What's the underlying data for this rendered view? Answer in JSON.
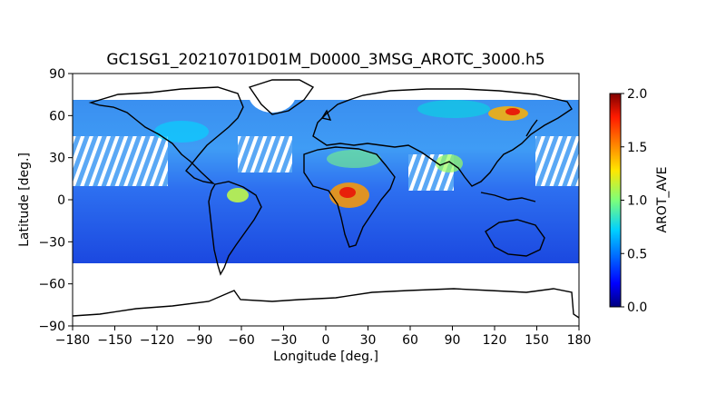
{
  "chart_data": {
    "type": "heatmap",
    "title": "GC1SG1_20210701D01M_D0000_3MSG_AROTC_3000.h5",
    "xlabel": "Longitude [deg.]",
    "ylabel": "Latitude [deg.]",
    "xlim": [
      -180,
      180
    ],
    "ylim": [
      -90,
      90
    ],
    "xticks": [
      "−180",
      "−150",
      "−120",
      "−90",
      "−60",
      "−30",
      "0",
      "30",
      "60",
      "90",
      "120",
      "150",
      "180"
    ],
    "yticks": [
      "90",
      "60",
      "30",
      "0",
      "−30",
      "−60",
      "−90"
    ],
    "colorbar": {
      "label": "AROT_AVE",
      "range": [
        0.0,
        2.0
      ],
      "ticks": [
        "0.0",
        "0.5",
        "1.0",
        "1.5",
        "2.0"
      ],
      "colormap": "jet"
    },
    "data_coverage_lat": [
      -45,
      72
    ],
    "grid": false
  }
}
